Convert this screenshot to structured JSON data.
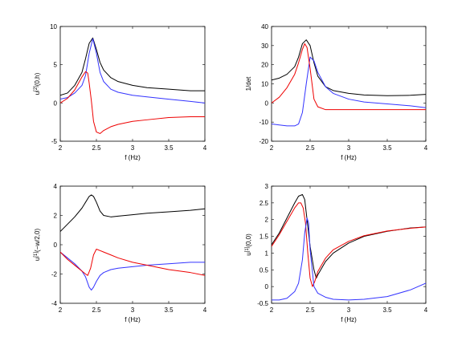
{
  "chart_data": [
    {
      "type": "line",
      "xlabel": "f (Hz)",
      "ylabel_main": "u",
      "ylabel_sup": "[2]",
      "ylabel_tail": "(0,h)",
      "xlim": [
        2,
        4
      ],
      "ylim": [
        -5,
        10
      ],
      "xticks": [
        2,
        2.5,
        3,
        3.5,
        4
      ],
      "yticks": [
        -5,
        0,
        5,
        10
      ],
      "series": [
        {
          "color": "#000000",
          "x": [
            2.0,
            2.1,
            2.2,
            2.3,
            2.35,
            2.4,
            2.45,
            2.5,
            2.55,
            2.6,
            2.7,
            2.8,
            3.0,
            3.2,
            3.5,
            3.8,
            4.0
          ],
          "y": [
            1.0,
            1.3,
            2.3,
            4.0,
            5.8,
            7.8,
            8.5,
            7.0,
            5.3,
            4.3,
            3.3,
            2.8,
            2.3,
            2.0,
            1.8,
            1.6,
            1.6
          ]
        },
        {
          "color": "#3333ff",
          "x": [
            2.0,
            2.1,
            2.2,
            2.3,
            2.35,
            2.4,
            2.45,
            2.5,
            2.55,
            2.6,
            2.7,
            2.8,
            3.0,
            3.2,
            3.5,
            3.8,
            4.0
          ],
          "y": [
            0.5,
            0.7,
            1.3,
            2.3,
            3.6,
            6.5,
            8.4,
            6.5,
            4.0,
            2.8,
            1.8,
            1.4,
            1.0,
            0.8,
            0.5,
            0.2,
            0.0
          ]
        },
        {
          "color": "#ee0000",
          "x": [
            2.0,
            2.1,
            2.2,
            2.3,
            2.35,
            2.38,
            2.4,
            2.43,
            2.46,
            2.5,
            2.55,
            2.6,
            2.7,
            2.8,
            3.0,
            3.2,
            3.5,
            3.8,
            4.0
          ],
          "y": [
            0.0,
            0.6,
            1.7,
            3.4,
            4.1,
            3.9,
            2.6,
            0.3,
            -2.4,
            -3.8,
            -4.0,
            -3.6,
            -3.1,
            -2.8,
            -2.4,
            -2.2,
            -1.9,
            -1.8,
            -1.8
          ]
        }
      ]
    },
    {
      "type": "line",
      "xlabel": "f (Hz)",
      "ylabel_main": "1/det",
      "ylabel_sup": "",
      "ylabel_tail": "",
      "xlim": [
        2,
        4
      ],
      "ylim": [
        -20,
        40
      ],
      "xticks": [
        2,
        2.5,
        3,
        3.5,
        4
      ],
      "yticks": [
        -20,
        -10,
        0,
        10,
        20,
        30,
        40
      ],
      "series": [
        {
          "color": "#000000",
          "x": [
            2.0,
            2.1,
            2.2,
            2.3,
            2.35,
            2.4,
            2.45,
            2.5,
            2.55,
            2.6,
            2.7,
            2.8,
            3.0,
            3.2,
            3.5,
            3.8,
            4.0
          ],
          "y": [
            12,
            13,
            15,
            19,
            24,
            31,
            33,
            30,
            21,
            14,
            8.5,
            6.5,
            5,
            4.2,
            3.8,
            4,
            4.5
          ]
        },
        {
          "color": "#3333ff",
          "x": [
            2.0,
            2.1,
            2.2,
            2.3,
            2.35,
            2.4,
            2.45,
            2.5,
            2.55,
            2.6,
            2.7,
            2.8,
            3.0,
            3.2,
            3.5,
            3.8,
            4.0
          ],
          "y": [
            -11,
            -11.5,
            -12,
            -12,
            -11,
            -5,
            10,
            24,
            22,
            16,
            8.5,
            5,
            2,
            0.5,
            -0.5,
            -1.5,
            -2.5
          ]
        },
        {
          "color": "#ee0000",
          "x": [
            2.0,
            2.1,
            2.2,
            2.3,
            2.35,
            2.4,
            2.43,
            2.46,
            2.5,
            2.55,
            2.6,
            2.7,
            2.8,
            3.0,
            3.2,
            3.5,
            3.8,
            4.0
          ],
          "y": [
            0,
            3,
            8,
            15,
            21,
            28,
            31,
            29,
            18,
            2,
            -2,
            -3.5,
            -3.5,
            -3.5,
            -3.5,
            -3.5,
            -3.5,
            -3.5
          ]
        }
      ]
    },
    {
      "type": "line",
      "xlabel": "f (Hz)",
      "ylabel_main": "u",
      "ylabel_sup": "[1]",
      "ylabel_tail": "(−w/2,0)",
      "xlim": [
        2,
        4
      ],
      "ylim": [
        -4,
        4
      ],
      "xticks": [
        2,
        2.5,
        3,
        3.5,
        4
      ],
      "yticks": [
        -4,
        -2,
        0,
        2,
        4
      ],
      "series": [
        {
          "color": "#000000",
          "x": [
            2.0,
            2.1,
            2.2,
            2.3,
            2.35,
            2.4,
            2.43,
            2.46,
            2.5,
            2.55,
            2.6,
            2.7,
            2.8,
            3.0,
            3.2,
            3.5,
            3.8,
            4.0
          ],
          "y": [
            0.9,
            1.4,
            1.9,
            2.5,
            2.9,
            3.3,
            3.4,
            3.3,
            2.9,
            2.3,
            2.0,
            1.9,
            1.95,
            2.05,
            2.15,
            2.25,
            2.35,
            2.45
          ]
        },
        {
          "color": "#3333ff",
          "x": [
            2.0,
            2.1,
            2.2,
            2.3,
            2.35,
            2.4,
            2.43,
            2.46,
            2.5,
            2.55,
            2.6,
            2.7,
            2.8,
            3.0,
            3.2,
            3.5,
            3.8,
            4.0
          ],
          "y": [
            -0.5,
            -0.9,
            -1.3,
            -1.8,
            -2.2,
            -2.9,
            -3.1,
            -2.9,
            -2.5,
            -2.1,
            -1.9,
            -1.7,
            -1.6,
            -1.5,
            -1.4,
            -1.3,
            -1.2,
            -1.2
          ]
        },
        {
          "color": "#ee0000",
          "x": [
            2.0,
            2.1,
            2.2,
            2.3,
            2.35,
            2.38,
            2.42,
            2.46,
            2.5,
            2.55,
            2.6,
            2.7,
            2.8,
            3.0,
            3.2,
            3.5,
            3.8,
            4.0
          ],
          "y": [
            -0.5,
            -1.0,
            -1.4,
            -1.8,
            -2.0,
            -2.1,
            -1.6,
            -0.7,
            -0.3,
            -0.4,
            -0.5,
            -0.7,
            -0.9,
            -1.2,
            -1.4,
            -1.7,
            -1.9,
            -2.1
          ]
        }
      ]
    },
    {
      "type": "line",
      "xlabel": "f (Hz)",
      "ylabel_main": "u",
      "ylabel_sup": "[1]",
      "ylabel_tail": "(0,0)",
      "xlim": [
        2,
        4
      ],
      "ylim": [
        -0.5,
        3
      ],
      "xticks": [
        2,
        2.5,
        3,
        3.5,
        4
      ],
      "yticks": [
        -0.5,
        0,
        0.5,
        1,
        1.5,
        2,
        2.5,
        3
      ],
      "series": [
        {
          "color": "#000000",
          "x": [
            2.0,
            2.1,
            2.2,
            2.3,
            2.35,
            2.4,
            2.43,
            2.46,
            2.5,
            2.55,
            2.58,
            2.6,
            2.7,
            2.8,
            3.0,
            3.2,
            3.5,
            3.8,
            4.0
          ],
          "y": [
            1.25,
            1.6,
            2.05,
            2.5,
            2.7,
            2.75,
            2.6,
            2.0,
            1.2,
            0.5,
            0.25,
            0.35,
            0.75,
            1.0,
            1.3,
            1.5,
            1.65,
            1.75,
            1.78
          ]
        },
        {
          "color": "#ee0000",
          "x": [
            2.0,
            2.1,
            2.2,
            2.3,
            2.35,
            2.38,
            2.41,
            2.44,
            2.47,
            2.5,
            2.53,
            2.56,
            2.6,
            2.7,
            2.8,
            3.0,
            3.2,
            3.5,
            3.8,
            4.0
          ],
          "y": [
            1.2,
            1.55,
            1.95,
            2.35,
            2.5,
            2.5,
            2.35,
            1.9,
            1.0,
            0.25,
            0.0,
            0.15,
            0.45,
            0.85,
            1.1,
            1.35,
            1.52,
            1.66,
            1.74,
            1.78
          ]
        },
        {
          "color": "#3333ff",
          "x": [
            2.0,
            2.1,
            2.2,
            2.3,
            2.35,
            2.4,
            2.43,
            2.46,
            2.48,
            2.5,
            2.55,
            2.6,
            2.7,
            2.8,
            3.0,
            3.2,
            3.5,
            3.8,
            4.0
          ],
          "y": [
            -0.4,
            -0.4,
            -0.35,
            -0.15,
            0.1,
            0.8,
            1.6,
            2.05,
            1.9,
            1.1,
            0.0,
            -0.2,
            -0.32,
            -0.38,
            -0.4,
            -0.38,
            -0.3,
            -0.1,
            0.1
          ]
        }
      ]
    }
  ]
}
